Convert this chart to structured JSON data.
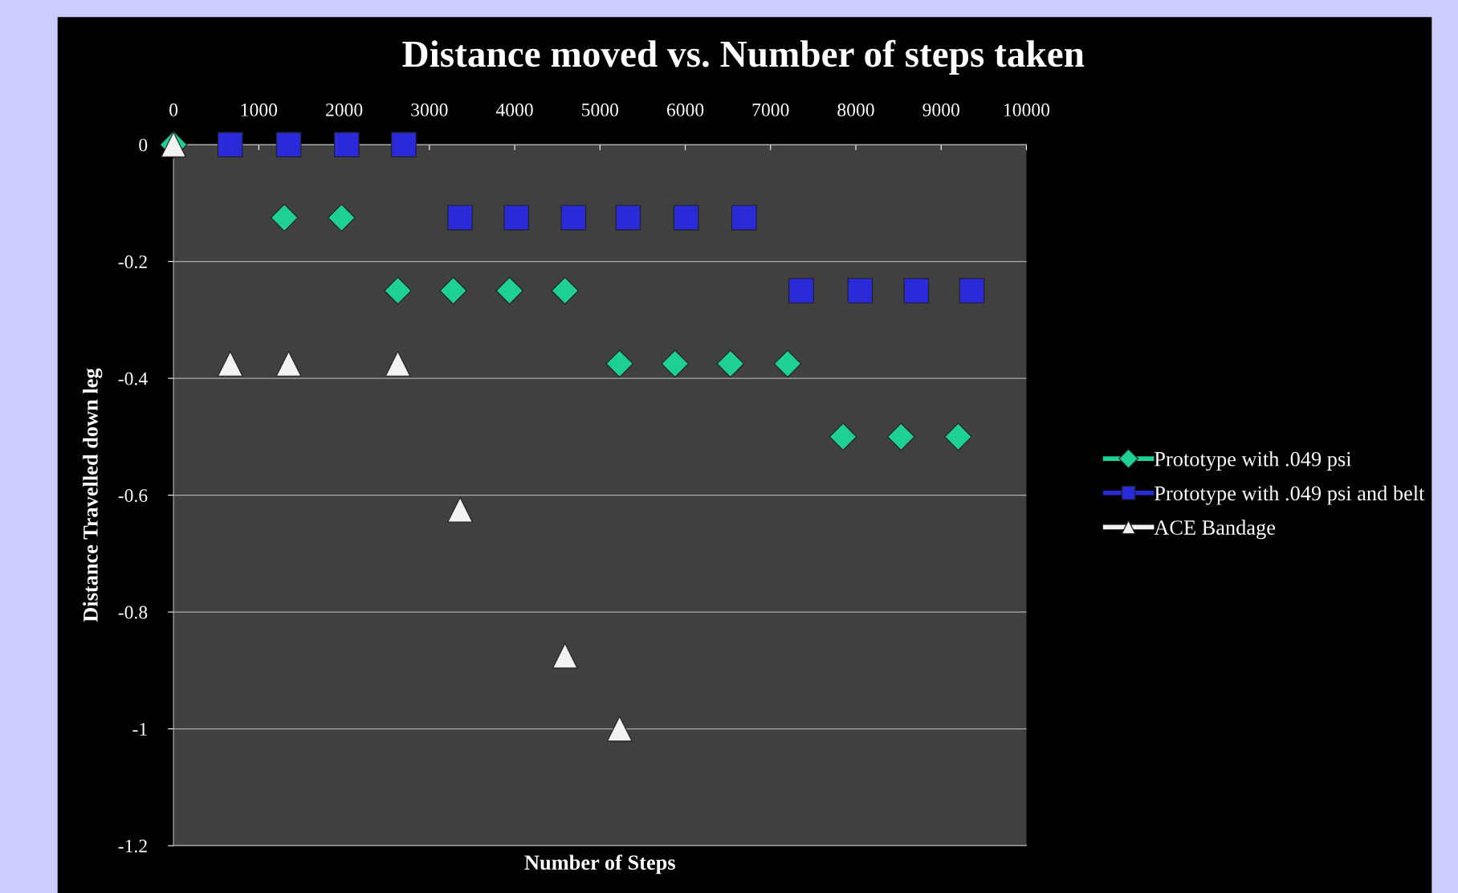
{
  "chart_data": {
    "type": "scatter",
    "title": "Distance moved vs. Number of steps taken",
    "xlabel": "Number of Steps",
    "ylabel": "Distance Travelled down leg",
    "xlim": [
      0,
      10000
    ],
    "xticks": [
      0,
      1000,
      2000,
      3000,
      4000,
      5000,
      6000,
      7000,
      8000,
      9000,
      10000
    ],
    "ylim": [
      -1.2,
      0
    ],
    "yticks": [
      -1.2,
      -1,
      -0.8,
      -0.6,
      -0.4,
      -0.2,
      0
    ],
    "grid": "y",
    "legend": "right",
    "series": [
      {
        "name": "Prototype with .049 psi",
        "color": "#1fd095",
        "marker": "diamond",
        "x": [
          0,
          1300,
          1970,
          2630,
          3280,
          3940,
          4590,
          5230,
          5880,
          6530,
          7200,
          7850,
          8530,
          9200
        ],
        "values": [
          0,
          -0.125,
          -0.125,
          -0.25,
          -0.25,
          -0.25,
          -0.25,
          -0.375,
          -0.375,
          -0.375,
          -0.375,
          -0.5,
          -0.5,
          -0.5
        ]
      },
      {
        "name": "Prototype with .049 psi and belt",
        "color": "#2a2ad8",
        "marker": "square",
        "x": [
          665,
          1350,
          2030,
          2700,
          3360,
          4020,
          4690,
          5330,
          6010,
          6690,
          7360,
          8050,
          8710,
          9360
        ],
        "values": [
          0,
          0,
          0,
          0,
          -0.125,
          -0.125,
          -0.125,
          -0.125,
          -0.125,
          -0.125,
          -0.25,
          -0.25,
          -0.25,
          -0.25
        ]
      },
      {
        "name": "ACE Bandage",
        "color": "#f2f2f2",
        "marker": "triangle",
        "x": [
          0,
          665,
          1350,
          2630,
          3360,
          4590,
          5230
        ],
        "values": [
          0,
          -0.375,
          -0.375,
          -0.375,
          -0.625,
          -0.875,
          -1.0
        ]
      }
    ]
  }
}
